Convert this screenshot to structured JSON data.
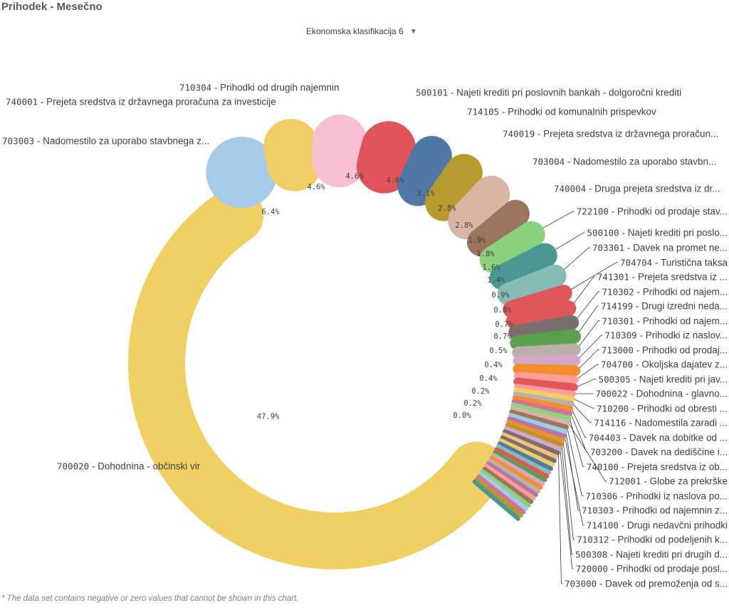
{
  "title": "Prihodek - Mesečno",
  "dimension_selector": {
    "label": "Ekonomska klasifikacija 6",
    "icon": "caret-down-icon"
  },
  "footnote": "* The data set contains negative or zero values that cannot be shown in this chart.",
  "chart_data": {
    "type": "pie",
    "variant": "radial-pills",
    "slices": [
      {
        "code": "700020",
        "name": "Dohodnina - občinski vir",
        "value": 47.9,
        "pct": "47.9%",
        "color": "#f0cf63"
      },
      {
        "code": "703003",
        "name": "Nadomestilo za uporabo stavbnega z...",
        "value": 6.4,
        "pct": "6.4%",
        "color": "#a6cbe8"
      },
      {
        "code": "740001",
        "name": "Prejeta sredstva iz državnega proračuna za investicije",
        "value": 4.6,
        "pct": "4.6%",
        "color": "#f1ce63"
      },
      {
        "code": "710304",
        "name": "Prihodki od drugih najemnin",
        "value": 4.6,
        "pct": "4.6%",
        "color": "#f9bfd3"
      },
      {
        "code": "500101",
        "name": "Najeti krediti pri poslovnih bankah - dolgoročni krediti",
        "value": 4.6,
        "pct": "4.6%",
        "color": "#e0535b"
      },
      {
        "code": "714105",
        "name": "Prihodki od komunalnih prispevkov",
        "value": 3.1,
        "pct": "3.1%",
        "color": "#4e79a7"
      },
      {
        "code": "740019",
        "name": "Prejeta sredstva iz državnega proračun...",
        "value": 2.8,
        "pct": "2.8%",
        "color": "#b89b2d"
      },
      {
        "code": "703004",
        "name": "Nadomestilo za uporabo stavbn...",
        "value": 2.8,
        "pct": "2.8%",
        "color": "#d8b5a5"
      },
      {
        "code": "740004",
        "name": "Druga prejeta sredstva iz dr...",
        "value": 1.9,
        "pct": "1.9%",
        "color": "#9c755f"
      },
      {
        "code": "722100",
        "name": "Prihodki od prodaje stav...",
        "value": 1.8,
        "pct": "1.8%",
        "color": "#8cd17d"
      },
      {
        "code": "500100",
        "name": "Najeti krediti pri poslo...",
        "value": 1.6,
        "pct": "1.6%",
        "color": "#499894"
      },
      {
        "code": "703301",
        "name": "Davek na promet ne...",
        "value": 1.4,
        "pct": "1.4%",
        "color": "#86bcb6"
      },
      {
        "code": "704704",
        "name": "Turistična taksa",
        "value": 0.9,
        "pct": "0.9%",
        "color": "#e15759"
      },
      {
        "code": "741301",
        "name": "Prejeta sredstva iz ...",
        "value": 0.8,
        "pct": "0.8%",
        "color": "#e15759"
      },
      {
        "code": "710302",
        "name": "Prihodki od najem...",
        "value": 0.7,
        "pct": "0.7%",
        "color": "#79706e"
      },
      {
        "code": "714199",
        "name": "Drugi izredni neda...",
        "value": 0.7,
        "pct": "0.7%",
        "color": "#59a14f"
      },
      {
        "code": "710301",
        "name": "Prihodki od najem...",
        "value": 0.5,
        "pct": "0.5%",
        "color": "#bab0ac"
      },
      {
        "code": "710309",
        "name": "Prihodki iz naslov...",
        "value": 0.4,
        "pct": "0.4%",
        "color": "#d4a6c8"
      },
      {
        "code": "713000",
        "name": "Prihodki od prodaj...",
        "value": 0.4,
        "pct": "0.4%",
        "color": "#f28e2b"
      },
      {
        "code": "704700",
        "name": "Okoljska dajatev z...",
        "value": 0.2,
        "pct": "0.2%",
        "color": "#ff9d9a"
      },
      {
        "code": "500305",
        "name": "Najeti krediti pri jav...",
        "value": 0.2,
        "pct": "0.2%",
        "color": "#e15759"
      },
      {
        "code": "700022",
        "name": "Dohodnina - glavno...",
        "value": 0.05,
        "pct": "0.0%",
        "color": "#ff9d9a"
      },
      {
        "code": "710200",
        "name": "Prihodki od obresti ...",
        "value": 0.04,
        "color": "#f1ce63"
      },
      {
        "code": "714116",
        "name": "Nadomestila zaradi ...",
        "value": 0.04,
        "color": "#bab0ac"
      },
      {
        "code": "704403",
        "name": "Davek na dobitke od ...",
        "value": 0.03,
        "color": "#f28e2b"
      },
      {
        "code": "703200",
        "name": "Davek na dediščine i...",
        "value": 0.03,
        "color": "#d37295"
      },
      {
        "code": "740100",
        "name": "Prejeta sredstva iz ob...",
        "value": 0.03,
        "color": "#8cd17d"
      },
      {
        "code": "712001",
        "name": "Globe za prekrške",
        "value": 0.02,
        "color": "#d7b5a6"
      },
      {
        "code": "710306",
        "name": "Prihodki iz naslova po...",
        "value": 0.02,
        "color": "#9d7660"
      },
      {
        "code": "710303",
        "name": "Prihodki od najemnin z...",
        "value": 0.02,
        "color": "#a0cbe8"
      },
      {
        "code": "714100",
        "name": "Drugi nedavčni prihodki",
        "value": 0.02,
        "color": "#b07aa1"
      },
      {
        "code": "710312",
        "name": "Prihodki od podeljenih k...",
        "value": 0.01,
        "color": "#f28e2b"
      },
      {
        "code": "500308",
        "name": "Najeti krediti pri drugih d...",
        "value": 0.01,
        "color": "#b6992d"
      },
      {
        "code": "720000",
        "name": "Prihodki od prodaje posl...",
        "value": 0.01,
        "color": "#d4a6c8"
      },
      {
        "code": "703000",
        "name": "Davek od premoženja od s...",
        "value": 0.01,
        "color": "#79706e"
      }
    ],
    "extra_slice_colors": [
      "#ffbe7d",
      "#79706e",
      "#f1ce63",
      "#4e79a7",
      "#86bcb6",
      "#e15759",
      "#59a14f",
      "#d4a6c8",
      "#f28e2b",
      "#bab0ac",
      "#b07aa1",
      "#ff9d9a",
      "#9c755f",
      "#8cd17d",
      "#a0cbe8",
      "#d37295",
      "#b6992d",
      "#499894"
    ]
  }
}
